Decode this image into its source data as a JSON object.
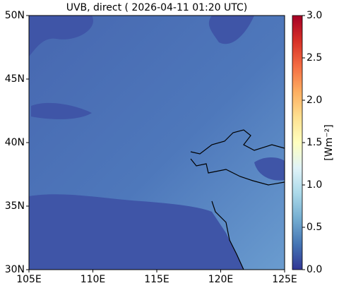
{
  "chart_data": {
    "type": "map",
    "title": "UVB, direct ( 2026-04-11 01:20 UTC)",
    "xlim": [
      105,
      125
    ],
    "ylim": [
      30,
      50
    ],
    "xticks": [
      {
        "value": 105,
        "label": "105E"
      },
      {
        "value": 110,
        "label": "110E"
      },
      {
        "value": 115,
        "label": "115E"
      },
      {
        "value": 120,
        "label": "120E"
      },
      {
        "value": 125,
        "label": "125E"
      }
    ],
    "yticks": [
      {
        "value": 30,
        "label": "30N"
      },
      {
        "value": 35,
        "label": "35N"
      },
      {
        "value": 40,
        "label": "40N"
      },
      {
        "value": 45,
        "label": "45N"
      },
      {
        "value": 50,
        "label": "50N"
      }
    ],
    "colorbar": {
      "label": "[Wm⁻²]",
      "clim": [
        0,
        3
      ],
      "ticks": [
        {
          "value": 0,
          "label": "0.0"
        },
        {
          "value": 0.5,
          "label": "0.5"
        },
        {
          "value": 1,
          "label": "1.0"
        },
        {
          "value": 1.5,
          "label": "1.5"
        },
        {
          "value": 2,
          "label": "2.0"
        },
        {
          "value": 2.5,
          "label": "2.5"
        },
        {
          "value": 3,
          "label": "3.0"
        }
      ]
    }
  }
}
